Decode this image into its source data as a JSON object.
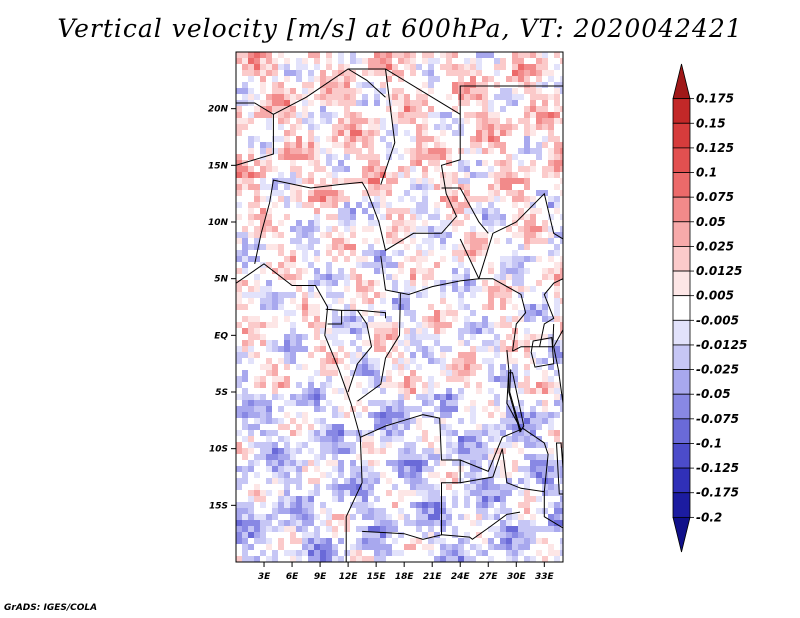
{
  "title": "Vertical velocity [m/s] at 600hPa, VT: 2020042421",
  "credit": "GrADS: IGES/COLA",
  "chart_data": {
    "type": "heatmap",
    "variable": "Vertical velocity",
    "units": "m/s",
    "level": "600hPa",
    "valid_time": "2020042421",
    "xlabel": "",
    "ylabel": "",
    "x_ticks": [
      "3E",
      "6E",
      "9E",
      "12E",
      "15E",
      "18E",
      "21E",
      "24E",
      "27E",
      "30E",
      "33E"
    ],
    "x_tick_values": [
      3,
      6,
      9,
      12,
      15,
      18,
      21,
      24,
      27,
      30,
      33
    ],
    "y_ticks": [
      "20N",
      "15N",
      "10N",
      "5N",
      "EQ",
      "5S",
      "10S",
      "15S"
    ],
    "y_tick_values": [
      20,
      15,
      10,
      5,
      0,
      -5,
      -10,
      -15
    ],
    "xlim": [
      0,
      35
    ],
    "ylim": [
      -20,
      25
    ],
    "colorbar": {
      "labels": [
        "0.175",
        "0.15",
        "0.125",
        "0.1",
        "0.075",
        "0.05",
        "0.025",
        "0.0125",
        "0.005",
        "-0.005",
        "-0.0125",
        "-0.025",
        "-0.05",
        "-0.075",
        "-0.1",
        "-0.125",
        "-0.175",
        "-0.2"
      ],
      "levels": [
        0.175,
        0.15,
        0.125,
        0.1,
        0.075,
        0.05,
        0.025,
        0.0125,
        0.005,
        -0.005,
        -0.0125,
        -0.025,
        -0.05,
        -0.075,
        -0.1,
        -0.125,
        -0.175,
        -0.2
      ],
      "colors": [
        "#a01818",
        "#c22828",
        "#d63c3c",
        "#e25050",
        "#ec6a6a",
        "#f28a8a",
        "#f7aaaa",
        "#fbcaca",
        "#fde6e6",
        "#ffffff",
        "#e2e2fb",
        "#c6c6f5",
        "#a8a8ee",
        "#8888e4",
        "#6a6ad8",
        "#4c4cca",
        "#3030b8",
        "#1c1ca0",
        "#10108a"
      ]
    },
    "map": {
      "projection": "latlon",
      "features": [
        "coastlines",
        "country boundaries"
      ],
      "region": "Central Africa"
    }
  }
}
